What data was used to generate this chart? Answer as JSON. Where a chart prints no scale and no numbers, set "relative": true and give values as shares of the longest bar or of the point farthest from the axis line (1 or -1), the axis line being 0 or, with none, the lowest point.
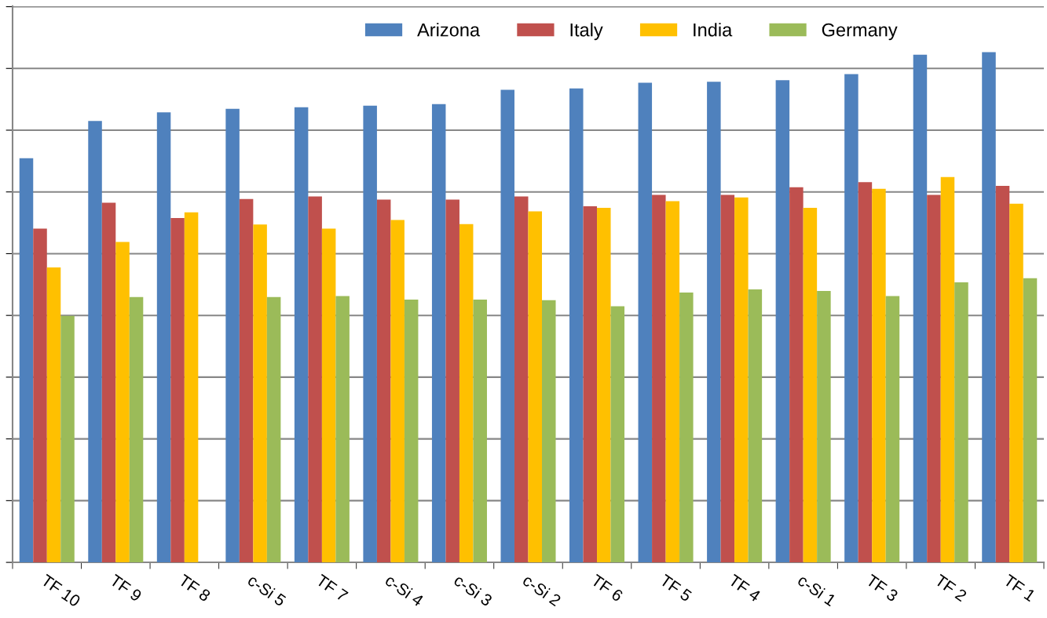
{
  "chart_data": {
    "type": "bar",
    "relative": true,
    "grid": "y",
    "legend": "top",
    "categories": [
      "TF 10",
      "TF 9",
      "TF 8",
      "c-Si 5",
      "TF 7",
      "c-Si 4",
      "c-Si 3",
      "c-Si 2",
      "TF 6",
      "TF 5",
      "TF 4",
      "c-Si 1",
      "TF 3",
      "TF 2",
      "TF 1"
    ],
    "series": [
      {
        "name": "Arizona",
        "color": "#4f81bd",
        "values": [
          0.792,
          0.865,
          0.882,
          0.889,
          0.892,
          0.895,
          0.898,
          0.926,
          0.929,
          0.94,
          0.942,
          0.945,
          0.957,
          0.995,
          1
        ]
      },
      {
        "name": "Italy",
        "color": "#c0504d",
        "values": [
          0.654,
          0.705,
          0.675,
          0.712,
          0.717,
          0.711,
          0.711,
          0.717,
          0.698,
          0.72,
          0.72,
          0.735,
          0.745,
          0.72,
          0.738
        ]
      },
      {
        "name": "India",
        "color": "#ffc000",
        "values": [
          0.578,
          0.628,
          0.686,
          0.662,
          0.654,
          0.671,
          0.663,
          0.688,
          0.695,
          0.708,
          0.715,
          0.695,
          0.732,
          0.755,
          0.703
        ]
      },
      {
        "name": "Germany",
        "color": "#9bbb59",
        "values": [
          0.483,
          0.52,
          null,
          0.52,
          0.522,
          0.515,
          0.515,
          0.514,
          0.502,
          0.529,
          0.535,
          0.532,
          0.522,
          0.549,
          0.557
        ]
      }
    ]
  }
}
